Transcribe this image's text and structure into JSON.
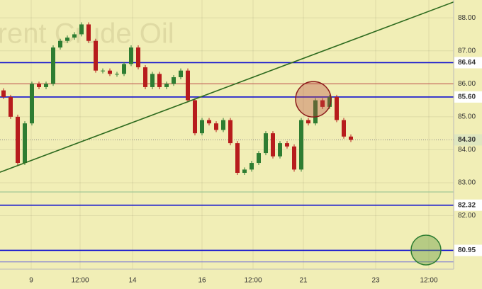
{
  "chart_data": {
    "type": "candlestick",
    "watermark": "Brent Crude Oil",
    "x": [
      1,
      3,
      5,
      7,
      9,
      11,
      13,
      15,
      17,
      19,
      21,
      23,
      25,
      27,
      29,
      31,
      33,
      35,
      37,
      39,
      41,
      43,
      45,
      47,
      49,
      51,
      53,
      55,
      57,
      59,
      61,
      63,
      65,
      67,
      69,
      71,
      73,
      75,
      77,
      79,
      81,
      83,
      85,
      87,
      89,
      91,
      93,
      95,
      97,
      99
    ],
    "open": [
      85.8,
      85.6,
      85.0,
      83.6,
      84.8,
      86.0,
      85.9,
      86.0,
      87.1,
      87.3,
      87.4,
      87.5,
      87.8,
      87.3,
      86.4,
      86.4,
      86.3,
      86.3,
      86.6,
      87.1,
      86.5,
      85.9,
      86.3,
      85.9,
      86.0,
      86.2,
      86.4,
      85.5,
      84.5,
      84.9,
      84.8,
      84.6,
      84.9,
      84.2,
      83.3,
      83.4,
      83.6,
      83.9,
      84.5,
      83.8,
      84.2,
      84.1,
      83.4,
      84.9,
      84.8,
      85.5,
      85.3,
      85.6,
      84.9,
      84.4
    ],
    "close": [
      85.6,
      85.0,
      83.6,
      84.8,
      86.0,
      85.9,
      86.0,
      87.1,
      87.3,
      87.4,
      87.5,
      87.8,
      87.3,
      86.4,
      86.4,
      86.3,
      86.3,
      86.6,
      87.1,
      86.5,
      85.9,
      86.3,
      85.9,
      86.0,
      86.2,
      86.4,
      85.5,
      84.5,
      84.9,
      84.8,
      84.6,
      84.9,
      84.2,
      83.3,
      83.4,
      83.6,
      83.9,
      84.5,
      83.8,
      84.2,
      84.1,
      83.4,
      84.9,
      84.8,
      85.5,
      85.3,
      85.6,
      84.9,
      84.4,
      84.3
    ],
    "up_color": "#2e7d32",
    "down_color": "#b71c1c",
    "xlim": [
      0,
      128
    ],
    "ylim": [
      80.38,
      88.54
    ],
    "xticks": [
      {
        "value": 8.8,
        "label": "9"
      },
      {
        "value": 22.6,
        "label": "12:00"
      },
      {
        "value": 37.4,
        "label": "14"
      },
      {
        "value": 57,
        "label": "16"
      },
      {
        "value": 71.4,
        "label": "12:00"
      },
      {
        "value": 85.6,
        "label": "21"
      },
      {
        "value": 106,
        "label": "23"
      },
      {
        "value": 121,
        "label": "12:00"
      }
    ],
    "yticks": [
      {
        "value": 82,
        "label": "82.00"
      },
      {
        "value": 83,
        "label": "83.00"
      },
      {
        "value": 84,
        "label": "84.00"
      },
      {
        "value": 85,
        "label": "85.00"
      },
      {
        "value": 86,
        "label": "86.00"
      },
      {
        "value": 87,
        "label": "87.00"
      },
      {
        "value": 88,
        "label": "88.00"
      }
    ],
    "grid": true,
    "levels": [
      {
        "value": 86.64,
        "label": "86.64",
        "color": "#1010d0"
      },
      {
        "value": 86.0,
        "color": "#c0504d"
      },
      {
        "value": 85.6,
        "label": "85.60",
        "color": "#1010d0"
      },
      {
        "value": 82.72,
        "color": "#8fbf8f"
      },
      {
        "value": 82.32,
        "label": "82.32",
        "color": "#1010d0"
      },
      {
        "value": 80.95,
        "label": "80.95",
        "color": "#1010d0"
      },
      {
        "value": 80.6,
        "color": "#6a6ad8"
      }
    ],
    "last_price": {
      "value": 84.3,
      "label": "84.30",
      "color": "#4caf50"
    },
    "trend_line": {
      "x": [
        0,
        128
      ],
      "y": [
        83.32,
        88.48
      ],
      "color": "#2e6b1f"
    },
    "circles": [
      {
        "x": 88.4,
        "y": 85.53,
        "fill": "rgba(180,70,60,0.35)",
        "stroke": "#8b1a1a"
      },
      {
        "x": 120.2,
        "y": 80.96,
        "fill": "rgba(110,160,70,0.45)",
        "stroke": "#2e7d32"
      }
    ]
  }
}
